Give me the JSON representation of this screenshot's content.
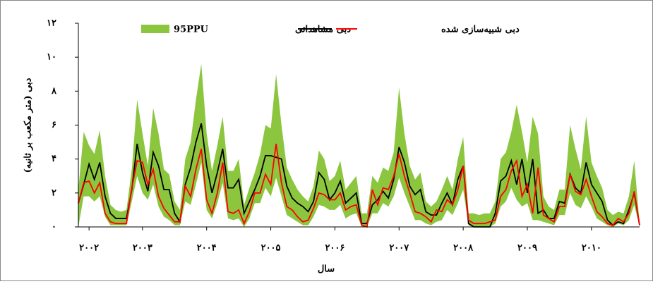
{
  "chart_data": {
    "type": "line",
    "xlabel": "سال",
    "ylabel": "دبی (متر مکعب بر ثانیه)",
    "x": [
      0,
      1,
      2,
      3,
      4,
      5,
      6,
      7,
      8,
      9,
      10,
      11,
      12,
      13,
      14,
      15,
      16,
      17,
      18,
      19,
      20,
      21,
      22,
      23,
      24,
      25,
      26,
      27,
      28,
      29,
      30,
      31,
      32,
      33,
      34,
      35,
      36,
      37,
      38,
      39,
      40,
      41,
      42,
      43,
      44,
      45,
      46,
      47,
      48,
      49,
      50,
      51,
      52,
      53,
      54,
      55,
      56,
      57,
      58,
      59,
      60,
      61,
      62,
      63,
      64,
      65,
      66,
      67,
      68,
      69,
      70,
      71,
      72,
      73,
      74,
      75,
      76,
      77,
      78,
      79,
      80,
      81,
      82,
      83,
      84,
      85,
      86,
      87,
      88,
      89,
      90,
      91,
      92,
      93,
      94,
      95,
      96,
      97,
      98,
      99,
      100,
      101,
      102,
      103,
      104,
      105
    ],
    "xlim": [
      0,
      105
    ],
    "xticks": [
      {
        "value": 2,
        "label": "۲۰۰۲"
      },
      {
        "value": 12,
        "label": "۲۰۰۳"
      },
      {
        "value": 24,
        "label": "۲۰۰۴"
      },
      {
        "value": 36,
        "label": "۲۰۰۵"
      },
      {
        "value": 48,
        "label": "۲۰۰۶"
      },
      {
        "value": 60,
        "label": "۲۰۰۷"
      },
      {
        "value": 72,
        "label": "۲۰۰۸"
      },
      {
        "value": 84,
        "label": "۲۰۰۹"
      },
      {
        "value": 96,
        "label": "۲۰۱۰"
      }
    ],
    "ylim": [
      0,
      12
    ],
    "yticks": [
      {
        "value": 0,
        "label": "۰"
      },
      {
        "value": 2,
        "label": "۲"
      },
      {
        "value": 4,
        "label": "۴"
      },
      {
        "value": 6,
        "label": "۶"
      },
      {
        "value": 8,
        "label": "۸"
      },
      {
        "value": 10,
        "label": "۱۰"
      },
      {
        "value": 12,
        "label": "۱۲"
      }
    ],
    "series": [
      {
        "name": "95PPU",
        "type": "band",
        "color": "#8cc63f",
        "upper": [
          2.2,
          5.6,
          4.8,
          4.3,
          5.7,
          3.0,
          1.3,
          1.0,
          0.9,
          1.0,
          3.4,
          7.5,
          5.5,
          3.6,
          7.0,
          5.5,
          3.4,
          3.1,
          1.5,
          1.0,
          4.0,
          5.0,
          7.5,
          9.6,
          5.5,
          3.3,
          4.8,
          6.5,
          3.3,
          3.3,
          4.0,
          1.3,
          2.3,
          3.2,
          4.3,
          6.0,
          5.8,
          9.0,
          6.0,
          3.5,
          2.8,
          2.2,
          1.8,
          1.5,
          2.4,
          4.5,
          4.0,
          2.7,
          3.0,
          3.9,
          2.2,
          2.6,
          3.0,
          0.8,
          0.8,
          3.0,
          2.6,
          3.5,
          3.3,
          4.4,
          8.2,
          5.5,
          3.6,
          2.8,
          3.2,
          1.5,
          1.2,
          1.5,
          2.2,
          3.0,
          2.2,
          4.0,
          5.3,
          0.8,
          0.8,
          0.7,
          0.8,
          0.8,
          1.5,
          4.0,
          4.4,
          5.6,
          7.2,
          5.6,
          3.8,
          6.5,
          5.5,
          1.8,
          1.2,
          1.0,
          2.2,
          2.2,
          6.0,
          4.6,
          3.4,
          6.5,
          3.8,
          3.0,
          2.3,
          1.0,
          0.7,
          0.9,
          0.8,
          1.8,
          3.9,
          0.2
        ],
        "lower": [
          0,
          1.8,
          1.8,
          1.5,
          1.8,
          0.6,
          0.1,
          0.1,
          0.1,
          0.1,
          1.5,
          3.0,
          2.0,
          1.6,
          2.5,
          1.2,
          0.6,
          0.4,
          0.1,
          0.1,
          1.5,
          1.3,
          2.5,
          3.8,
          1.0,
          0.5,
          1.4,
          2.6,
          0.5,
          0.4,
          0.5,
          0.0,
          0.5,
          1.4,
          1.4,
          2.3,
          1.8,
          2.9,
          1.8,
          0.7,
          0.5,
          0.3,
          0.1,
          0.1,
          0.6,
          1.3,
          1.2,
          1.0,
          1.0,
          1.3,
          0.5,
          0.7,
          0.8,
          0.0,
          0.0,
          0.8,
          0.8,
          1.4,
          1.2,
          1.8,
          2.9,
          2.0,
          1.2,
          0.4,
          0.4,
          0.2,
          0.1,
          0.3,
          0.4,
          1.0,
          0.7,
          1.4,
          2.2,
          0.1,
          0.0,
          0.0,
          0.0,
          0.0,
          0.2,
          1.2,
          1.5,
          2.3,
          1.6,
          1.2,
          1.4,
          0.4,
          0.4,
          0.3,
          0.2,
          0.1,
          0.7,
          0.7,
          2.0,
          1.3,
          1.1,
          1.8,
          1.2,
          0.5,
          0.3,
          0.1,
          0.0,
          0.2,
          0.1,
          0.4,
          1.3,
          0.0
        ]
      },
      {
        "name": "دبی مشاهداتی",
        "color": "#000000",
        "values": [
          1.4,
          2.5,
          3.7,
          2.8,
          3.8,
          1.8,
          0.8,
          0.5,
          0.5,
          0.5,
          2.2,
          4.9,
          3.2,
          2.1,
          4.4,
          3.6,
          2.2,
          2.2,
          0.8,
          0.3,
          2.5,
          3.5,
          5.0,
          6.1,
          3.6,
          2.0,
          3.2,
          4.6,
          2.3,
          2.3,
          2.8,
          0.8,
          1.5,
          2.2,
          3.0,
          4.2,
          4.2,
          4.1,
          4.0,
          2.4,
          1.7,
          1.4,
          1.2,
          0.9,
          1.5,
          3.2,
          2.8,
          1.6,
          2.0,
          2.7,
          1.4,
          1.7,
          2.0,
          0.2,
          0.2,
          1.3,
          1.6,
          2.1,
          1.7,
          2.8,
          4.7,
          3.8,
          2.4,
          1.9,
          2.2,
          0.9,
          0.7,
          0.7,
          1.4,
          2.0,
          1.3,
          2.8,
          3.6,
          0.2,
          0.0,
          0.0,
          0.0,
          0.0,
          0.8,
          2.7,
          3.0,
          3.9,
          2.5,
          4.0,
          2.0,
          4.0,
          0.8,
          1.0,
          0.5,
          0.5,
          1.5,
          1.4,
          3.1,
          2.3,
          2.0,
          3.8,
          2.5,
          2.0,
          1.5,
          0.4,
          0.1,
          0.3,
          0.2,
          1.0,
          2.0,
          0.1
        ]
      },
      {
        "name": "دبی شبیه‌سازی شده",
        "color": "#ff0000",
        "values": [
          1.4,
          2.6,
          2.7,
          2.0,
          2.6,
          0.8,
          0.3,
          0.2,
          0.2,
          0.2,
          2.3,
          3.9,
          3.8,
          2.5,
          3.4,
          1.8,
          1.1,
          0.7,
          0.3,
          0.3,
          2.4,
          1.8,
          3.4,
          4.6,
          1.6,
          0.8,
          2.0,
          3.8,
          0.9,
          0.8,
          1.0,
          0.2,
          0.9,
          2.0,
          2.0,
          3.1,
          2.5,
          4.9,
          2.6,
          1.2,
          1.0,
          0.6,
          0.3,
          0.4,
          1.1,
          2.0,
          1.9,
          1.6,
          1.6,
          2.0,
          1.0,
          1.2,
          1.3,
          0.1,
          0.0,
          2.2,
          1.3,
          2.3,
          2.2,
          3.0,
          4.3,
          3.0,
          2.0,
          0.9,
          0.8,
          0.6,
          0.3,
          1.0,
          0.9,
          1.6,
          1.3,
          2.2,
          3.6,
          0.4,
          0.2,
          0.2,
          0.2,
          0.3,
          0.4,
          1.8,
          2.2,
          3.3,
          3.9,
          1.8,
          2.5,
          0.8,
          3.5,
          0.7,
          0.5,
          0.3,
          1.2,
          1.2,
          3.1,
          2.1,
          1.9,
          2.8,
          1.8,
          0.9,
          0.6,
          0.2,
          0.1,
          0.5,
          0.3,
          0.8,
          2.1,
          0.1
        ]
      }
    ]
  }
}
